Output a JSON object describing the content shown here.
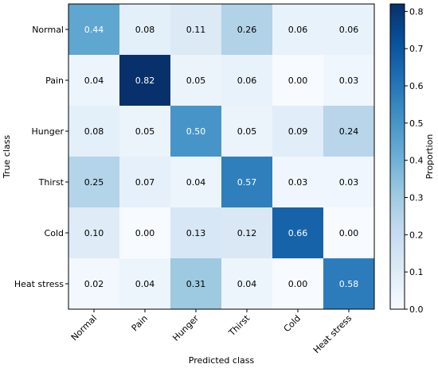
{
  "chart_data": {
    "type": "heatmap",
    "title": "",
    "xlabel": "Predicted class",
    "ylabel": "True class",
    "x_categories": [
      "Normal",
      "Pain",
      "Hunger",
      "Thirst",
      "Cold",
      "Heat stress"
    ],
    "y_categories": [
      "Normal",
      "Pain",
      "Hunger",
      "Thirst",
      "Cold",
      "Heat stress"
    ],
    "values": [
      [
        0.44,
        0.08,
        0.11,
        0.26,
        0.06,
        0.06
      ],
      [
        0.04,
        0.82,
        0.05,
        0.06,
        0.0,
        0.03
      ],
      [
        0.08,
        0.05,
        0.5,
        0.05,
        0.09,
        0.24
      ],
      [
        0.25,
        0.07,
        0.04,
        0.57,
        0.03,
        0.03
      ],
      [
        0.1,
        0.0,
        0.13,
        0.12,
        0.66,
        0.0
      ],
      [
        0.02,
        0.04,
        0.31,
        0.04,
        0.0,
        0.58
      ]
    ],
    "value_labels": [
      [
        "0.44",
        "0.08",
        "0.11",
        "0.26",
        "0.06",
        "0.06"
      ],
      [
        "0.04",
        "0.82",
        "0.05",
        "0.06",
        "0.00",
        "0.03"
      ],
      [
        "0.08",
        "0.05",
        "0.50",
        "0.05",
        "0.09",
        "0.24"
      ],
      [
        "0.25",
        "0.07",
        "0.04",
        "0.57",
        "0.03",
        "0.03"
      ],
      [
        "0.10",
        "0.00",
        "0.13",
        "0.12",
        "0.66",
        "0.00"
      ],
      [
        "0.02",
        "0.04",
        "0.31",
        "0.04",
        "0.00",
        "0.58"
      ]
    ],
    "colorbar": {
      "label": "Proportion",
      "range": [
        0.0,
        0.82
      ],
      "ticks": [
        0.0,
        0.1,
        0.2,
        0.3,
        0.4,
        0.5,
        0.6,
        0.7,
        0.8
      ],
      "tick_labels": [
        "0.0",
        "0.1",
        "0.2",
        "0.3",
        "0.4",
        "0.5",
        "0.6",
        "0.7",
        "0.8"
      ]
    },
    "colormap": "Blues",
    "colormap_stops": [
      "#f7fbff",
      "#deebf7",
      "#c6dbef",
      "#9ecae1",
      "#6baed6",
      "#4292c6",
      "#2171b5",
      "#08519c",
      "#08306b"
    ],
    "text_color_dark": "#000000",
    "text_color_light": "#ffffff",
    "grid": false
  }
}
